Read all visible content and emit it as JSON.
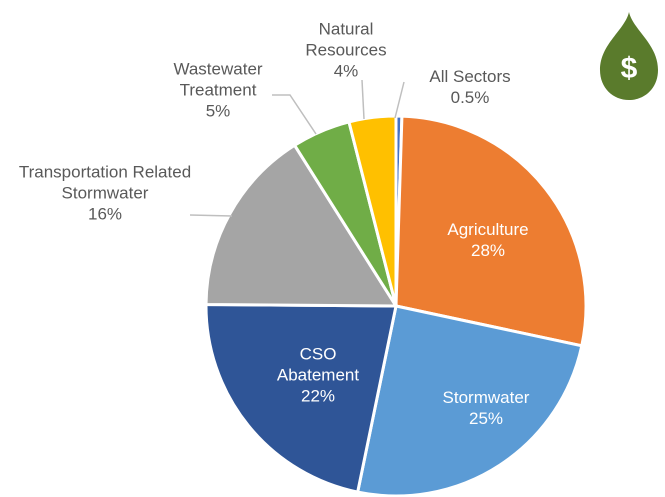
{
  "chart_data": {
    "type": "pie",
    "categories": [
      "All Sectors",
      "Agriculture",
      "Stormwater",
      "CSO Abatement",
      "Transportation Related Stormwater",
      "Wastewater Treatment",
      "Natural Resources"
    ],
    "values": [
      0.5,
      28,
      25,
      22,
      16,
      5,
      4
    ],
    "value_labels": [
      "0.5%",
      "28%",
      "25%",
      "22%",
      "16%",
      "5%",
      "4%"
    ],
    "colors": [
      "#4472c4",
      "#ed7d31",
      "#5b9bd5",
      "#2f5597",
      "#a5a5a5",
      "#70ad47",
      "#ffc000"
    ],
    "icon_label": "$"
  }
}
